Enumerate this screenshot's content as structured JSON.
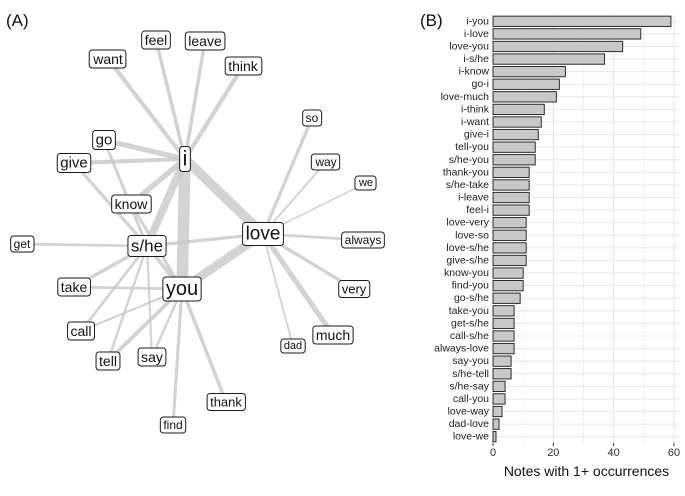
{
  "panels": {
    "a_label": "(A)",
    "b_label": "(B)"
  },
  "chart_data": [
    {
      "type": "network",
      "panel": "(A)",
      "nodes": [
        {
          "id": "i",
          "label": "i"
        },
        {
          "id": "s/he",
          "label": "s/he"
        },
        {
          "id": "you",
          "label": "you"
        },
        {
          "id": "love",
          "label": "love"
        },
        {
          "id": "feel",
          "label": "feel"
        },
        {
          "id": "leave",
          "label": "leave"
        },
        {
          "id": "want",
          "label": "want"
        },
        {
          "id": "think",
          "label": "think"
        },
        {
          "id": "go",
          "label": "go"
        },
        {
          "id": "give",
          "label": "give"
        },
        {
          "id": "know",
          "label": "know"
        },
        {
          "id": "get",
          "label": "get"
        },
        {
          "id": "take",
          "label": "take"
        },
        {
          "id": "call",
          "label": "call"
        },
        {
          "id": "tell",
          "label": "tell"
        },
        {
          "id": "say",
          "label": "say"
        },
        {
          "id": "find",
          "label": "find"
        },
        {
          "id": "thank",
          "label": "thank"
        },
        {
          "id": "so",
          "label": "so"
        },
        {
          "id": "way",
          "label": "way"
        },
        {
          "id": "we",
          "label": "we"
        },
        {
          "id": "always",
          "label": "always"
        },
        {
          "id": "very",
          "label": "very"
        },
        {
          "id": "much",
          "label": "much"
        },
        {
          "id": "dad",
          "label": "dad"
        }
      ],
      "edges": [
        {
          "source": "i",
          "target": "you",
          "weight": 59
        },
        {
          "source": "i",
          "target": "love",
          "weight": 49
        },
        {
          "source": "love",
          "target": "you",
          "weight": 43
        },
        {
          "source": "i",
          "target": "s/he",
          "weight": 37
        },
        {
          "source": "i",
          "target": "know",
          "weight": 24
        },
        {
          "source": "go",
          "target": "i",
          "weight": 22
        },
        {
          "source": "love",
          "target": "much",
          "weight": 21
        },
        {
          "source": "i",
          "target": "think",
          "weight": 17
        },
        {
          "source": "i",
          "target": "want",
          "weight": 16
        },
        {
          "source": "give",
          "target": "i",
          "weight": 15
        },
        {
          "source": "tell",
          "target": "you",
          "weight": 14
        },
        {
          "source": "s/he",
          "target": "you",
          "weight": 14
        },
        {
          "source": "thank",
          "target": "you",
          "weight": 12
        },
        {
          "source": "s/he",
          "target": "take",
          "weight": 12
        },
        {
          "source": "i",
          "target": "leave",
          "weight": 12
        },
        {
          "source": "feel",
          "target": "i",
          "weight": 12
        },
        {
          "source": "love",
          "target": "very",
          "weight": 11
        },
        {
          "source": "love",
          "target": "so",
          "weight": 11
        },
        {
          "source": "love",
          "target": "s/he",
          "weight": 11
        },
        {
          "source": "give",
          "target": "s/he",
          "weight": 11
        },
        {
          "source": "know",
          "target": "you",
          "weight": 10
        },
        {
          "source": "find",
          "target": "you",
          "weight": 10
        },
        {
          "source": "go",
          "target": "s/he",
          "weight": 9
        },
        {
          "source": "take",
          "target": "you",
          "weight": 7
        },
        {
          "source": "get",
          "target": "s/he",
          "weight": 7
        },
        {
          "source": "call",
          "target": "s/he",
          "weight": 7
        },
        {
          "source": "always",
          "target": "love",
          "weight": 7
        },
        {
          "source": "say",
          "target": "you",
          "weight": 6
        },
        {
          "source": "s/he",
          "target": "tell",
          "weight": 6
        },
        {
          "source": "s/he",
          "target": "say",
          "weight": 4
        },
        {
          "source": "call",
          "target": "you",
          "weight": 4
        },
        {
          "source": "love",
          "target": "way",
          "weight": 3
        },
        {
          "source": "dad",
          "target": "love",
          "weight": 2
        },
        {
          "source": "love",
          "target": "we",
          "weight": 1
        }
      ]
    },
    {
      "type": "bar",
      "panel": "(B)",
      "orientation": "horizontal",
      "categories": [
        "i-you",
        "i-love",
        "love-you",
        "i-s/he",
        "i-know",
        "go-i",
        "love-much",
        "i-think",
        "i-want",
        "give-i",
        "tell-you",
        "s/he-you",
        "thank-you",
        "s/he-take",
        "i-leave",
        "feel-i",
        "love-very",
        "love-so",
        "love-s/he",
        "give-s/he",
        "know-you",
        "find-you",
        "go-s/he",
        "take-you",
        "get-s/he",
        "call-s/he",
        "always-love",
        "say-you",
        "s/he-tell",
        "s/he-say",
        "call-you",
        "love-way",
        "dad-love",
        "love-we"
      ],
      "values": [
        59,
        49,
        43,
        37,
        24,
        22,
        21,
        17,
        16,
        15,
        14,
        14,
        12,
        12,
        12,
        12,
        11,
        11,
        11,
        11,
        10,
        10,
        9,
        7,
        7,
        7,
        7,
        6,
        6,
        4,
        4,
        3,
        2,
        1
      ],
      "xlabel": "Notes with 1+ occurrences",
      "ylabel": "",
      "xlim": [
        0,
        62
      ],
      "xticks": [
        0,
        20,
        40,
        60
      ],
      "grid": true,
      "bar_color": "#c8c8c8"
    }
  ]
}
